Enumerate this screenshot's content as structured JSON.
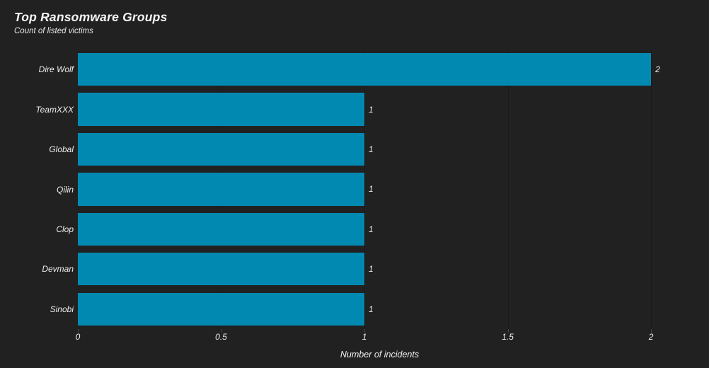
{
  "chart_data": {
    "type": "bar",
    "orientation": "horizontal",
    "title": "Top Ransomware Groups",
    "subtitle": "Count of listed victims",
    "xlabel": "Number of incidents",
    "ylabel": "",
    "categories": [
      "Dire Wolf",
      "TeamXXX",
      "Global",
      "Qilin",
      "Clop",
      "Devman",
      "Sinobi"
    ],
    "values": [
      2,
      1,
      1,
      1,
      1,
      1,
      1
    ],
    "xlim": [
      0,
      2.106
    ],
    "xticks": [
      0,
      0.5,
      1,
      1.5,
      2
    ],
    "xtick_labels": [
      "0",
      "0.5",
      "1",
      "1.5",
      "2"
    ],
    "grid": true,
    "legend_position": "none",
    "bar_value_labels_shown": true
  },
  "colors": {
    "background": "#212121",
    "bar": "#0289b2",
    "gridline": "#1a1a1a",
    "tick": "#484848",
    "text": "#ededed",
    "title_text": "#f5f5f5"
  }
}
